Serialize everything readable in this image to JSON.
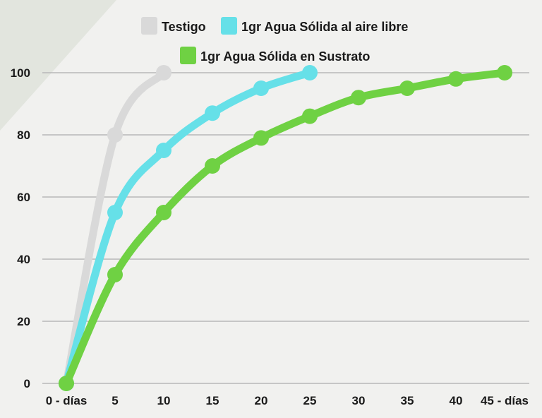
{
  "chart_data": {
    "type": "line",
    "title": "",
    "xlabel": "",
    "ylabel": "",
    "categories": [
      "0 - días",
      "5",
      "10",
      "15",
      "20",
      "25",
      "30",
      "35",
      "40",
      "45 - días"
    ],
    "x": [
      0,
      5,
      10,
      15,
      20,
      25,
      30,
      35,
      40,
      45
    ],
    "xlim": [
      0,
      45
    ],
    "ylim": [
      0,
      100
    ],
    "yticks": [
      0,
      20,
      40,
      60,
      80,
      100
    ],
    "grid": true,
    "legend_position": "top-center",
    "series": [
      {
        "name": "Testigo",
        "color": "#d9d9d9",
        "x": [
          0,
          5,
          10
        ],
        "values": [
          0,
          80,
          100
        ]
      },
      {
        "name": "1gr Agua Sólida al aire libre",
        "color": "#66e0e8",
        "x": [
          0,
          5,
          10,
          15,
          20,
          25
        ],
        "values": [
          0,
          55,
          75,
          87,
          95,
          100
        ]
      },
      {
        "name": "1gr Agua Sólida en Sustrato",
        "color": "#6fd143",
        "x": [
          0,
          5,
          10,
          15,
          20,
          25,
          30,
          35,
          40,
          45
        ],
        "values": [
          0,
          35,
          55,
          70,
          79,
          86,
          92,
          95,
          98,
          100
        ]
      }
    ]
  }
}
